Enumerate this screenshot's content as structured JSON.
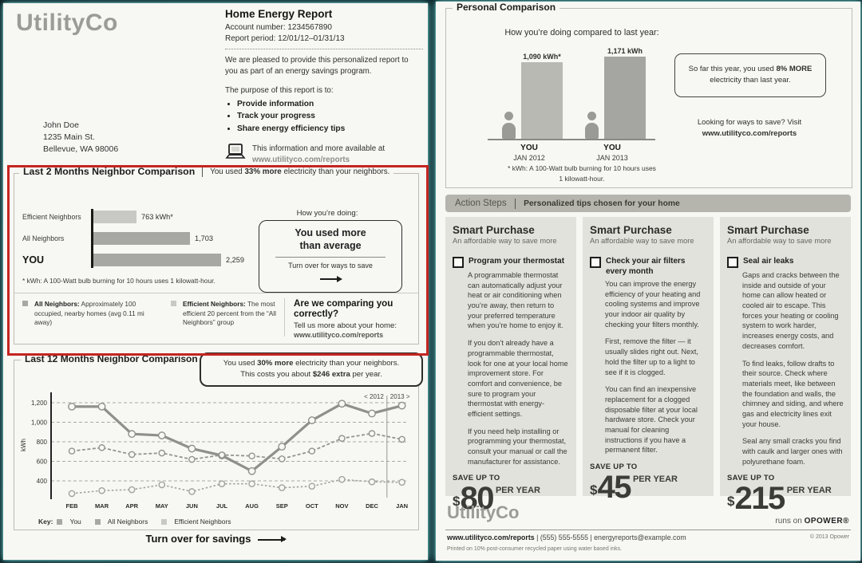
{
  "colors": {
    "highlight_red": "#c42520",
    "page_glow_cyan": "#6ed8d8",
    "bar_dark_gray": "#a7a7a3",
    "bar_light_gray": "#c8c8c4",
    "logo_gray": "#9b9b97"
  },
  "left_page": {
    "logo": "UtilityCo",
    "header": {
      "title": "Home Energy Report",
      "account": "Account number: 1234567890",
      "period": "Report period: 12/01/12–01/31/13",
      "intro": "We are pleased to provide this personalized report to you as part of an energy savings program.",
      "purpose_label": "The purpose of this report is to:",
      "purpose_items": [
        "Provide information",
        "Track your progress",
        "Share energy efficiency tips"
      ],
      "info_line1": "This information and more available at",
      "info_line2": "www.utilityco.com/reports"
    },
    "address": {
      "name": "John Doe",
      "street": "1235 Main St.",
      "city": "Bellevue, WA 98006"
    },
    "two_month": {
      "title": "Last 2 Months Neighbor Comparison",
      "sub_prefix": "You used ",
      "sub_bold": "33% more",
      "sub_suffix": " electricity than your neighbors.",
      "footnote": "* kWh: A 100-Watt bulb burning for 10 hours uses 1 kilowatt-hour.",
      "how_label": "How you’re doing:",
      "how_line1": "You used more",
      "how_line2": "than average",
      "how_cta": "Turn over for ways to save",
      "legend_all_title": "All Neighbors:",
      "legend_all_text": " Approximately 100 occupied, nearby homes (avg 0.11 mi away)",
      "legend_eff_title": "Efficient Neighbors:",
      "legend_eff_text": " The most efficient 20 percent from the “All Neighbors” group",
      "compare_title": "Are we comparing you correctly?",
      "compare_line": "Tell us more about your home:",
      "compare_url": "www.utilityco.com/reports"
    },
    "twelve_month": {
      "title": "Last 12 Months Neighbor Comparison",
      "callout1_prefix": "You used ",
      "callout1_bold": "30% more",
      "callout1_suffix": " electricity than your neighbors.",
      "callout2_prefix": "This costs you about ",
      "callout2_bold": "$246 extra",
      "callout2_suffix": " per year.",
      "key_label": "Key:"
    },
    "turn_over": "Turn over for savings"
  },
  "right_page": {
    "personal": {
      "title": "Personal Comparison",
      "prompt": "How you’re doing compared to last year:",
      "groups": [
        {
          "who": "YOU",
          "date": "JAN 2012"
        },
        {
          "who": "YOU",
          "date": "JAN 2013"
        }
      ],
      "footnote_line1": "* kWh: A 100-Watt bulb burning for 10 hours uses",
      "footnote_line2": "1 kilowatt-hour.",
      "callout_prefix": "So far this year, you used ",
      "callout_bold": "8% MORE",
      "callout_suffix": " electricity than last year.",
      "save_line": "Looking for ways to save? Visit",
      "save_url": "www.utilityco.com/reports"
    },
    "action_bar": {
      "label": "Action Steps",
      "tagline": "Personalized tips chosen for your home"
    },
    "tips": [
      {
        "heading": "Smart Purchase",
        "subheading": "An affordable way to save more",
        "title": "Program your thermostat",
        "paragraphs": [
          "A programmable thermostat can automatically adjust your heat or air conditioning when you’re away, then return to your preferred temperature when you’re home to enjoy it.",
          "If you don’t already have a programmable thermostat, look for one at your local home improvement store. For comfort and convenience, be sure to program your thermostat with energy-efficient settings.",
          "If you need help installing or programming your thermostat, consult your manual or call the manufacturer for assistance."
        ],
        "save_label": "SAVE UP TO",
        "currency": "$",
        "amount": "80",
        "per": "PER YEAR"
      },
      {
        "heading": "Smart Purchase",
        "subheading": "An affordable way to save more",
        "title": "Check your air filters every month",
        "paragraphs": [
          "You can improve the energy efficiency of your heating and cooling systems and improve your indoor air quality by checking your filters monthly.",
          "First, remove the filter — it usually slides right out. Next, hold the filter up to a light to see if it is clogged.",
          "You can find an inexpensive replacement for a clogged disposable filter at your local hardware store. Check your manual for cleaning instructions if you have a permanent filter."
        ],
        "save_label": "SAVE UP TO",
        "currency": "$",
        "amount": "45",
        "per": "PER YEAR"
      },
      {
        "heading": "Smart Purchase",
        "subheading": "An affordable way to save more",
        "title": "Seal air leaks",
        "paragraphs": [
          "Gaps and cracks between the inside and outside of your home can allow heated or cooled air to escape. This forces your heating or cooling system to work harder, increases energy costs, and decreases comfort.",
          "To find leaks, follow drafts to their source. Check where materials meet, like between the foundation and walls, the chimney and siding, and where gas and electricity lines exit your house.",
          "Seal any small cracks you find with caulk and larger ones with polyurethane foam."
        ],
        "save_label": "SAVE UP TO",
        "currency": "$",
        "amount": "215",
        "per": "PER YEAR"
      }
    ],
    "footer": {
      "logo": "UtilityCo",
      "runs_on": "runs on",
      "opower": "OPOWER®",
      "contact_url": "www.utilityco.com/reports",
      "contact_rest": " | (555) 555-5555 | energyreports@example.com",
      "copyright": "© 2013 Opower",
      "printed": "Printed on 10% post-consumer recycled paper using water based inks."
    }
  },
  "chart_data": [
    {
      "id": "two_month_bars",
      "type": "bar",
      "orientation": "horizontal",
      "title": "Last 2 Months Neighbor Comparison",
      "categories": [
        "Efficient Neighbors",
        "All Neighbors",
        "YOU"
      ],
      "values": [
        763,
        1703,
        2259
      ],
      "value_labels": [
        "763 kWh*",
        "1,703",
        "2,259"
      ],
      "unit": "kWh",
      "xlim": [
        0,
        2400
      ],
      "grid": false
    },
    {
      "id": "personal_comparison_bars",
      "type": "bar",
      "title": "How you’re doing compared to last year",
      "categories": [
        "YOU JAN 2012",
        "YOU JAN 2013"
      ],
      "values": [
        1090,
        1171
      ],
      "value_labels": [
        "1,090 kWh*",
        "1,171 kWh"
      ],
      "unit": "kWh",
      "ylim": [
        0,
        1250
      ],
      "grid": false
    },
    {
      "id": "twelve_month_line",
      "type": "line",
      "title": "Last 12 Months Neighbor Comparison",
      "x": [
        "FEB",
        "MAR",
        "APR",
        "MAY",
        "JUN",
        "JUL",
        "AUG",
        "SEP",
        "OCT",
        "NOV",
        "DEC",
        "JAN"
      ],
      "series": [
        {
          "name": "You",
          "values": [
            1160,
            1160,
            880,
            865,
            730,
            660,
            500,
            750,
            1020,
            1190,
            1090,
            1170
          ]
        },
        {
          "name": "All Neighbors",
          "values": [
            705,
            740,
            670,
            685,
            620,
            665,
            655,
            625,
            705,
            835,
            885,
            825
          ]
        },
        {
          "name": "Efficient Neighbors",
          "values": [
            270,
            300,
            310,
            360,
            290,
            370,
            370,
            330,
            345,
            415,
            390,
            385
          ]
        }
      ],
      "ylabel": "kWh",
      "yticks": [
        400,
        600,
        800,
        1000,
        1200
      ],
      "ytick_labels": [
        "400",
        "600",
        "800",
        "1,000",
        "1,200"
      ],
      "ylim": [
        200,
        1300
      ],
      "grid": "dashed-horizontal",
      "legend": "bottom",
      "year_divider": {
        "after": "DEC",
        "left_label": "< 2012",
        "right_label": "2013 >"
      }
    }
  ]
}
